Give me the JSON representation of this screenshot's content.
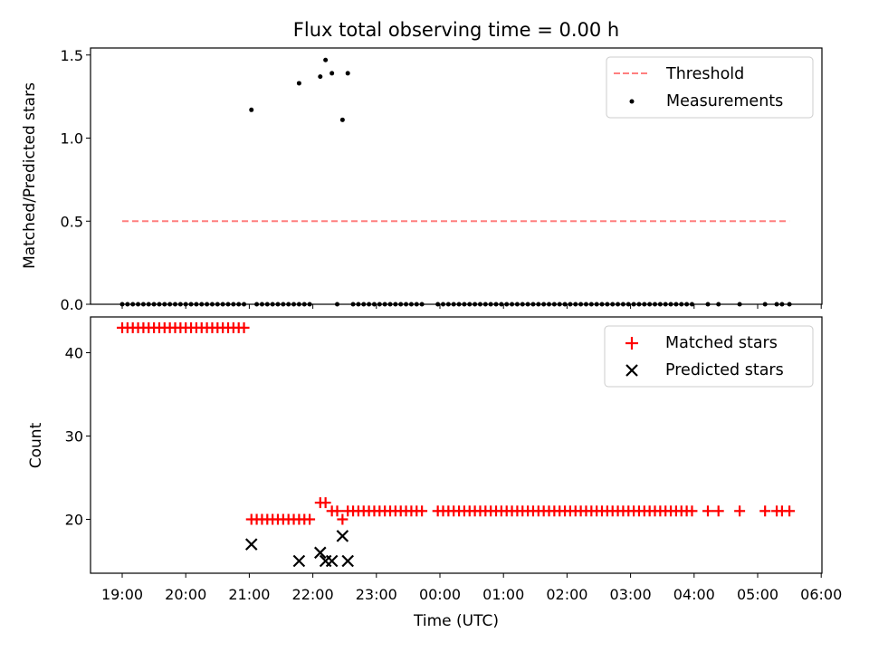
{
  "chart_data": [
    {
      "type": "scatter",
      "title": "Flux total observing time = 0.00 h",
      "ylabel": "Matched/Predicted stars",
      "xlabel": "",
      "ylim": [
        0,
        1.55
      ],
      "yticks": [
        "0.0",
        "0.5",
        "1.0",
        "1.5"
      ],
      "legend_position": "top-right",
      "threshold": {
        "name": "Threshold",
        "value": 0.5,
        "x_start": "19:00",
        "x_end": "05:30",
        "color": "#ff7f7f",
        "style": "dashed"
      },
      "series": [
        {
          "name": "Measurements",
          "color": "#000000",
          "points": [
            {
              "x": "19:00",
              "y": 0
            },
            {
              "x": "19:05",
              "y": 0
            },
            {
              "x": "19:10",
              "y": 0
            },
            {
              "x": "19:15",
              "y": 0
            },
            {
              "x": "19:20",
              "y": 0
            },
            {
              "x": "19:25",
              "y": 0
            },
            {
              "x": "19:30",
              "y": 0
            },
            {
              "x": "19:35",
              "y": 0
            },
            {
              "x": "19:40",
              "y": 0
            },
            {
              "x": "19:45",
              "y": 0
            },
            {
              "x": "19:50",
              "y": 0
            },
            {
              "x": "19:55",
              "y": 0
            },
            {
              "x": "20:00",
              "y": 0
            },
            {
              "x": "20:05",
              "y": 0
            },
            {
              "x": "20:10",
              "y": 0
            },
            {
              "x": "20:15",
              "y": 0
            },
            {
              "x": "20:20",
              "y": 0
            },
            {
              "x": "20:25",
              "y": 0
            },
            {
              "x": "20:30",
              "y": 0
            },
            {
              "x": "20:35",
              "y": 0
            },
            {
              "x": "20:40",
              "y": 0
            },
            {
              "x": "20:45",
              "y": 0
            },
            {
              "x": "20:50",
              "y": 0
            },
            {
              "x": "20:55",
              "y": 0
            },
            {
              "x": "21:02",
              "y": 1.17
            },
            {
              "x": "21:07",
              "y": 0
            },
            {
              "x": "21:12",
              "y": 0
            },
            {
              "x": "21:17",
              "y": 0
            },
            {
              "x": "21:22",
              "y": 0
            },
            {
              "x": "21:27",
              "y": 0
            },
            {
              "x": "21:32",
              "y": 0
            },
            {
              "x": "21:37",
              "y": 0
            },
            {
              "x": "21:42",
              "y": 0
            },
            {
              "x": "21:47",
              "y": 0
            },
            {
              "x": "21:52",
              "y": 0
            },
            {
              "x": "21:57",
              "y": 0
            },
            {
              "x": "21:47",
              "y": 1.33
            },
            {
              "x": "22:07",
              "y": 1.37
            },
            {
              "x": "22:12",
              "y": 1.47
            },
            {
              "x": "22:18",
              "y": 1.39
            },
            {
              "x": "22:28",
              "y": 1.11
            },
            {
              "x": "22:33",
              "y": 1.39
            },
            {
              "x": "22:23",
              "y": 0
            },
            {
              "x": "22:38",
              "y": 0
            },
            {
              "x": "22:43",
              "y": 0
            },
            {
              "x": "22:48",
              "y": 0
            },
            {
              "x": "22:53",
              "y": 0
            },
            {
              "x": "22:58",
              "y": 0
            },
            {
              "x": "23:03",
              "y": 0
            },
            {
              "x": "23:08",
              "y": 0
            },
            {
              "x": "23:13",
              "y": 0
            },
            {
              "x": "23:18",
              "y": 0
            },
            {
              "x": "23:23",
              "y": 0
            },
            {
              "x": "23:28",
              "y": 0
            },
            {
              "x": "23:33",
              "y": 0
            },
            {
              "x": "23:38",
              "y": 0
            },
            {
              "x": "23:43",
              "y": 0
            },
            {
              "x": "23:58",
              "y": 0
            },
            {
              "x": "00:03",
              "y": 0
            },
            {
              "x": "00:08",
              "y": 0
            },
            {
              "x": "00:13",
              "y": 0
            },
            {
              "x": "00:18",
              "y": 0
            },
            {
              "x": "00:23",
              "y": 0
            },
            {
              "x": "00:28",
              "y": 0
            },
            {
              "x": "00:33",
              "y": 0
            },
            {
              "x": "00:38",
              "y": 0
            },
            {
              "x": "00:43",
              "y": 0
            },
            {
              "x": "00:48",
              "y": 0
            },
            {
              "x": "00:53",
              "y": 0
            },
            {
              "x": "00:58",
              "y": 0
            },
            {
              "x": "01:03",
              "y": 0
            },
            {
              "x": "01:08",
              "y": 0
            },
            {
              "x": "01:13",
              "y": 0
            },
            {
              "x": "01:18",
              "y": 0
            },
            {
              "x": "01:23",
              "y": 0
            },
            {
              "x": "01:28",
              "y": 0
            },
            {
              "x": "01:33",
              "y": 0
            },
            {
              "x": "01:38",
              "y": 0
            },
            {
              "x": "01:43",
              "y": 0
            },
            {
              "x": "01:48",
              "y": 0
            },
            {
              "x": "01:53",
              "y": 0
            },
            {
              "x": "01:58",
              "y": 0
            },
            {
              "x": "02:03",
              "y": 0
            },
            {
              "x": "02:08",
              "y": 0
            },
            {
              "x": "02:13",
              "y": 0
            },
            {
              "x": "02:18",
              "y": 0
            },
            {
              "x": "02:23",
              "y": 0
            },
            {
              "x": "02:28",
              "y": 0
            },
            {
              "x": "02:33",
              "y": 0
            },
            {
              "x": "02:38",
              "y": 0
            },
            {
              "x": "02:43",
              "y": 0
            },
            {
              "x": "02:48",
              "y": 0
            },
            {
              "x": "02:53",
              "y": 0
            },
            {
              "x": "02:58",
              "y": 0
            },
            {
              "x": "03:03",
              "y": 0
            },
            {
              "x": "03:08",
              "y": 0
            },
            {
              "x": "03:13",
              "y": 0
            },
            {
              "x": "03:18",
              "y": 0
            },
            {
              "x": "03:23",
              "y": 0
            },
            {
              "x": "03:28",
              "y": 0
            },
            {
              "x": "03:33",
              "y": 0
            },
            {
              "x": "03:38",
              "y": 0
            },
            {
              "x": "03:43",
              "y": 0
            },
            {
              "x": "03:48",
              "y": 0
            },
            {
              "x": "03:53",
              "y": 0
            },
            {
              "x": "03:58",
              "y": 0
            },
            {
              "x": "04:13",
              "y": 0
            },
            {
              "x": "04:23",
              "y": 0
            },
            {
              "x": "04:43",
              "y": 0
            },
            {
              "x": "05:07",
              "y": 0
            },
            {
              "x": "05:18",
              "y": 0
            },
            {
              "x": "05:23",
              "y": 0
            },
            {
              "x": "05:30",
              "y": 0
            }
          ]
        }
      ]
    },
    {
      "type": "scatter",
      "title": "",
      "xlabel": "Time (UTC)",
      "ylabel": "Count",
      "ylim": [
        13.5,
        45
      ],
      "yticks": [
        "20",
        "30",
        "40"
      ],
      "xticks": [
        "19:00",
        "20:00",
        "21:00",
        "22:00",
        "23:00",
        "00:00",
        "01:00",
        "02:00",
        "03:00",
        "04:00",
        "05:00",
        "06:00"
      ],
      "xlim": [
        "18:30",
        "06:00"
      ],
      "legend_position": "top-right",
      "series": [
        {
          "name": "Matched stars",
          "color": "#ff0000",
          "marker": "plus",
          "points": [
            {
              "x": "19:00",
              "y": 43
            },
            {
              "x": "19:05",
              "y": 43
            },
            {
              "x": "19:10",
              "y": 43
            },
            {
              "x": "19:15",
              "y": 43
            },
            {
              "x": "19:20",
              "y": 43
            },
            {
              "x": "19:25",
              "y": 43
            },
            {
              "x": "19:30",
              "y": 43
            },
            {
              "x": "19:35",
              "y": 43
            },
            {
              "x": "19:40",
              "y": 43
            },
            {
              "x": "19:45",
              "y": 43
            },
            {
              "x": "19:50",
              "y": 43
            },
            {
              "x": "19:55",
              "y": 43
            },
            {
              "x": "20:00",
              "y": 43
            },
            {
              "x": "20:05",
              "y": 43
            },
            {
              "x": "20:10",
              "y": 43
            },
            {
              "x": "20:15",
              "y": 43
            },
            {
              "x": "20:20",
              "y": 43
            },
            {
              "x": "20:25",
              "y": 43
            },
            {
              "x": "20:30",
              "y": 43
            },
            {
              "x": "20:35",
              "y": 43
            },
            {
              "x": "20:40",
              "y": 43
            },
            {
              "x": "20:45",
              "y": 43
            },
            {
              "x": "20:50",
              "y": 43
            },
            {
              "x": "20:55",
              "y": 43
            },
            {
              "x": "21:02",
              "y": 20
            },
            {
              "x": "21:07",
              "y": 20
            },
            {
              "x": "21:12",
              "y": 20
            },
            {
              "x": "21:17",
              "y": 20
            },
            {
              "x": "21:22",
              "y": 20
            },
            {
              "x": "21:27",
              "y": 20
            },
            {
              "x": "21:32",
              "y": 20
            },
            {
              "x": "21:37",
              "y": 20
            },
            {
              "x": "21:42",
              "y": 20
            },
            {
              "x": "21:47",
              "y": 20
            },
            {
              "x": "21:52",
              "y": 20
            },
            {
              "x": "21:57",
              "y": 20
            },
            {
              "x": "22:07",
              "y": 22
            },
            {
              "x": "22:12",
              "y": 22
            },
            {
              "x": "22:18",
              "y": 21
            },
            {
              "x": "22:23",
              "y": 21
            },
            {
              "x": "22:28",
              "y": 20
            },
            {
              "x": "22:33",
              "y": 21
            },
            {
              "x": "22:38",
              "y": 21
            },
            {
              "x": "22:43",
              "y": 21
            },
            {
              "x": "22:48",
              "y": 21
            },
            {
              "x": "22:53",
              "y": 21
            },
            {
              "x": "22:58",
              "y": 21
            },
            {
              "x": "23:03",
              "y": 21
            },
            {
              "x": "23:08",
              "y": 21
            },
            {
              "x": "23:13",
              "y": 21
            },
            {
              "x": "23:18",
              "y": 21
            },
            {
              "x": "23:23",
              "y": 21
            },
            {
              "x": "23:28",
              "y": 21
            },
            {
              "x": "23:33",
              "y": 21
            },
            {
              "x": "23:38",
              "y": 21
            },
            {
              "x": "23:43",
              "y": 21
            },
            {
              "x": "23:58",
              "y": 21
            },
            {
              "x": "00:03",
              "y": 21
            },
            {
              "x": "00:08",
              "y": 21
            },
            {
              "x": "00:13",
              "y": 21
            },
            {
              "x": "00:18",
              "y": 21
            },
            {
              "x": "00:23",
              "y": 21
            },
            {
              "x": "00:28",
              "y": 21
            },
            {
              "x": "00:33",
              "y": 21
            },
            {
              "x": "00:38",
              "y": 21
            },
            {
              "x": "00:43",
              "y": 21
            },
            {
              "x": "00:48",
              "y": 21
            },
            {
              "x": "00:53",
              "y": 21
            },
            {
              "x": "00:58",
              "y": 21
            },
            {
              "x": "01:03",
              "y": 21
            },
            {
              "x": "01:08",
              "y": 21
            },
            {
              "x": "01:13",
              "y": 21
            },
            {
              "x": "01:18",
              "y": 21
            },
            {
              "x": "01:23",
              "y": 21
            },
            {
              "x": "01:28",
              "y": 21
            },
            {
              "x": "01:33",
              "y": 21
            },
            {
              "x": "01:38",
              "y": 21
            },
            {
              "x": "01:43",
              "y": 21
            },
            {
              "x": "01:48",
              "y": 21
            },
            {
              "x": "01:53",
              "y": 21
            },
            {
              "x": "01:58",
              "y": 21
            },
            {
              "x": "02:03",
              "y": 21
            },
            {
              "x": "02:08",
              "y": 21
            },
            {
              "x": "02:13",
              "y": 21
            },
            {
              "x": "02:18",
              "y": 21
            },
            {
              "x": "02:23",
              "y": 21
            },
            {
              "x": "02:28",
              "y": 21
            },
            {
              "x": "02:33",
              "y": 21
            },
            {
              "x": "02:38",
              "y": 21
            },
            {
              "x": "02:43",
              "y": 21
            },
            {
              "x": "02:48",
              "y": 21
            },
            {
              "x": "02:53",
              "y": 21
            },
            {
              "x": "02:58",
              "y": 21
            },
            {
              "x": "03:03",
              "y": 21
            },
            {
              "x": "03:08",
              "y": 21
            },
            {
              "x": "03:13",
              "y": 21
            },
            {
              "x": "03:18",
              "y": 21
            },
            {
              "x": "03:23",
              "y": 21
            },
            {
              "x": "03:28",
              "y": 21
            },
            {
              "x": "03:33",
              "y": 21
            },
            {
              "x": "03:38",
              "y": 21
            },
            {
              "x": "03:43",
              "y": 21
            },
            {
              "x": "03:48",
              "y": 21
            },
            {
              "x": "03:53",
              "y": 21
            },
            {
              "x": "03:58",
              "y": 21
            },
            {
              "x": "04:13",
              "y": 21
            },
            {
              "x": "04:23",
              "y": 21
            },
            {
              "x": "04:43",
              "y": 21
            },
            {
              "x": "05:07",
              "y": 21
            },
            {
              "x": "05:18",
              "y": 21
            },
            {
              "x": "05:23",
              "y": 21
            },
            {
              "x": "05:30",
              "y": 21
            }
          ]
        },
        {
          "name": "Predicted stars",
          "color": "#000000",
          "marker": "x",
          "points": [
            {
              "x": "21:02",
              "y": 17
            },
            {
              "x": "21:47",
              "y": 15
            },
            {
              "x": "22:07",
              "y": 16
            },
            {
              "x": "22:12",
              "y": 15
            },
            {
              "x": "22:18",
              "y": 15
            },
            {
              "x": "22:28",
              "y": 18
            },
            {
              "x": "22:33",
              "y": 15
            }
          ]
        }
      ]
    }
  ]
}
